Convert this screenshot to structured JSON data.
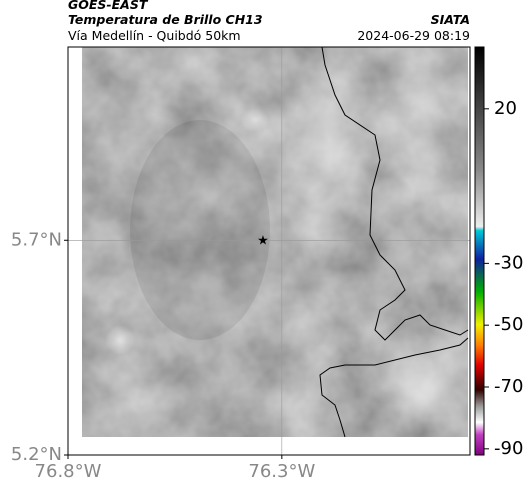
{
  "header": {
    "source": "GOES-EAST",
    "product": "Temperatura de Brillo CH13",
    "route": "Vía Medellín - Quibdó 50km",
    "agency": "SIATA",
    "timestamp": "2024-06-29 08:19"
  },
  "map": {
    "xlim": [
      -76.8,
      -75.86
    ],
    "ylim": [
      5.2,
      6.15
    ],
    "xticks": [
      {
        "value": -76.8,
        "label": "76.8°W"
      },
      {
        "value": -76.3,
        "label": "76.3°W"
      }
    ],
    "yticks": [
      {
        "value": 5.2,
        "label": "5.2°N"
      },
      {
        "value": 5.7,
        "label": "5.7°N"
      }
    ],
    "grid": true
  },
  "colorbar": {
    "clim": [
      -92,
      40
    ],
    "ticks": [
      20,
      -30,
      -50,
      -70,
      -90
    ]
  }
}
